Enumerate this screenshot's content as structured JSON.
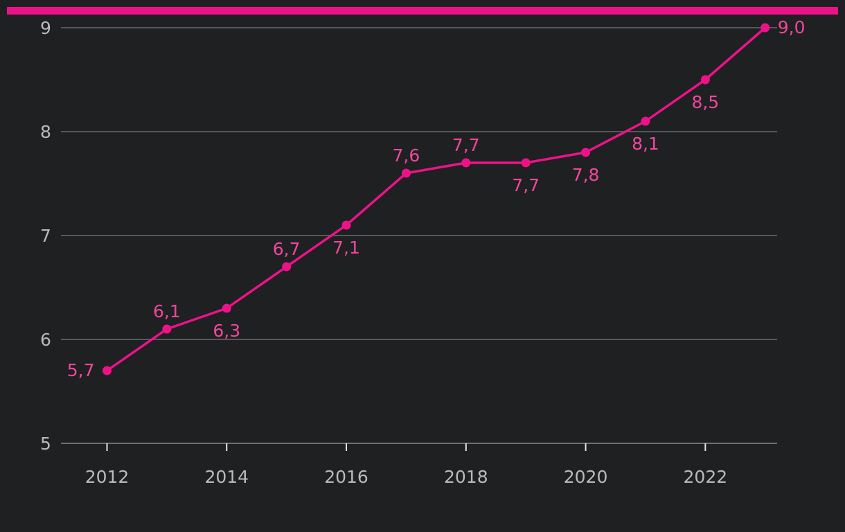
{
  "chart_data": {
    "type": "line",
    "title": "",
    "xlabel": "",
    "ylabel": "",
    "ylim": [
      5,
      9
    ],
    "y_ticks": [
      5,
      6,
      7,
      8,
      9
    ],
    "x_ticks": [
      2012,
      2014,
      2016,
      2018,
      2020,
      2022
    ],
    "xlim": [
      2011.23,
      2023.2
    ],
    "grid": true,
    "legend": "none",
    "colors": {
      "accent": "#ee1289",
      "line": "#ee1289",
      "label": "#f0479d",
      "background": "#1f2022"
    },
    "series": [
      {
        "x": [
          2012,
          2013,
          2014,
          2015,
          2016,
          2017,
          2018,
          2019,
          2020,
          2021,
          2022,
          2023
        ],
        "values": [
          5.7,
          6.1,
          6.3,
          6.7,
          7.1,
          7.6,
          7.7,
          7.7,
          7.8,
          8.1,
          8.5,
          9.0
        ],
        "labels": [
          "5,7",
          "6,1",
          "6,3",
          "6,7",
          "7,1",
          "7,6",
          "7,7",
          "7,7",
          "7,8",
          "8,1",
          "8,5",
          "9,0"
        ],
        "label_positions": [
          "left",
          "above",
          "below",
          "above",
          "below",
          "above",
          "above",
          "below",
          "below",
          "below",
          "below",
          "right"
        ]
      }
    ]
  }
}
